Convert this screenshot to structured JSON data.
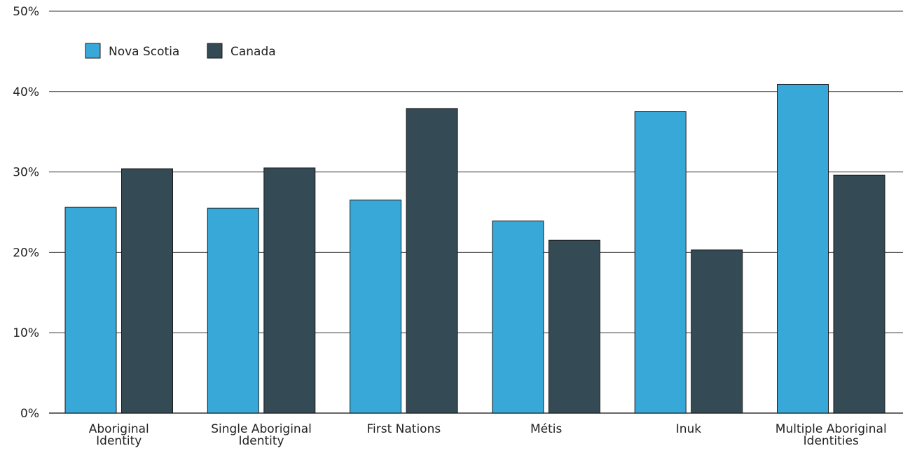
{
  "chart_data": {
    "type": "bar",
    "title": "",
    "xlabel": "",
    "ylabel": "",
    "ylim": [
      0,
      50
    ],
    "yticks": [
      0,
      10,
      20,
      30,
      40,
      50
    ],
    "ytick_labels": [
      "0%",
      "10%",
      "20%",
      "30%",
      "40%",
      "50%"
    ],
    "grid": true,
    "legend_position": "top-left",
    "categories": [
      [
        "Aboriginal",
        "Identity"
      ],
      [
        "Single Aboriginal",
        "Identity"
      ],
      [
        "First Nations"
      ],
      [
        "Métis"
      ],
      [
        "Inuk"
      ],
      [
        "Multiple Aboriginal",
        "Identities"
      ]
    ],
    "series": [
      {
        "name": "Nova Scotia",
        "color": "#38a8d8",
        "values": [
          25.6,
          25.5,
          26.5,
          23.9,
          37.5,
          40.9
        ]
      },
      {
        "name": "Canada",
        "color": "#344a54",
        "values": [
          30.4,
          30.5,
          37.9,
          21.5,
          20.3,
          29.6
        ]
      }
    ]
  }
}
